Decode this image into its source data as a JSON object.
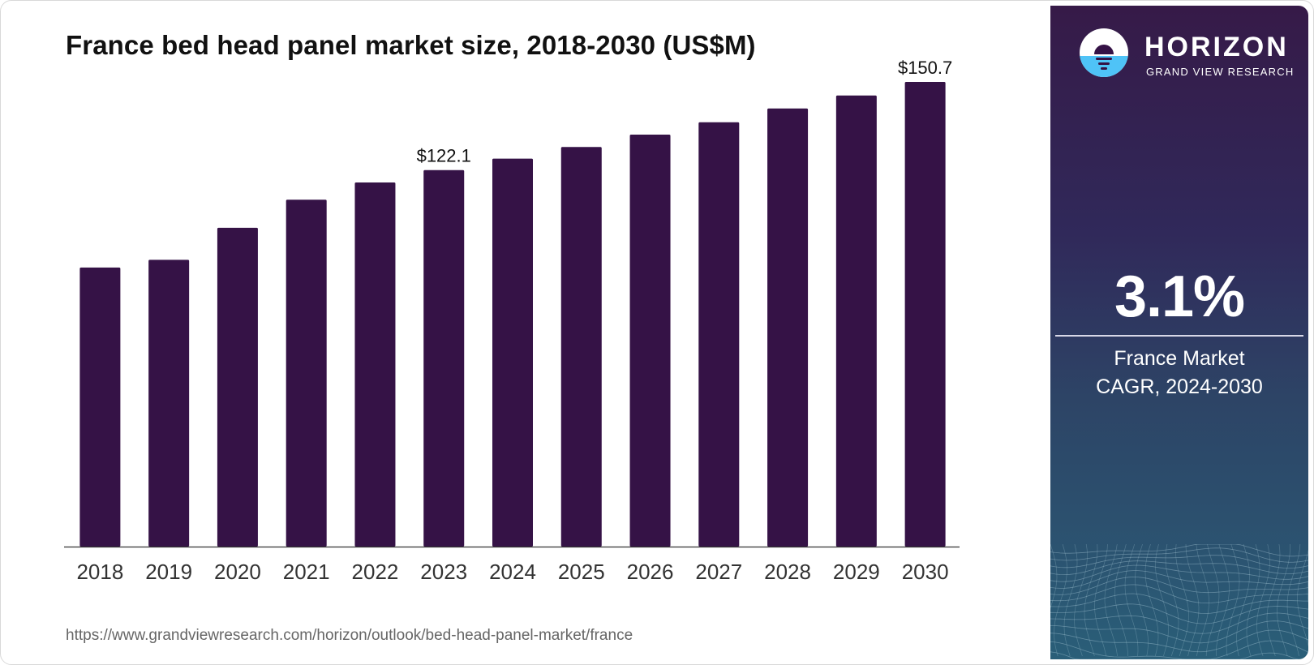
{
  "title": "France bed head panel market size, 2018-2030 (US$M)",
  "source_url": "https://www.grandviewresearch.com/horizon/outlook/bed-head-panel-market/france",
  "colors": {
    "bar": "#351246",
    "axis": "#333333",
    "panel_top": "#361a48",
    "panel_bottom": "#2a5e78",
    "logo_accent": "#4fc3f7"
  },
  "logo": {
    "name": "HORIZON",
    "subtitle": "GRAND VIEW RESEARCH",
    "icon": "horizon-sun-icon"
  },
  "side_panel": {
    "cagr_value": "3.1%",
    "cagr_label_line1": "France Market",
    "cagr_label_line2": "CAGR, 2024-2030"
  },
  "chart_data": {
    "type": "bar",
    "title": "France bed head panel market size, 2018-2030 (US$M)",
    "categories": [
      "2018",
      "2019",
      "2020",
      "2021",
      "2022",
      "2023",
      "2024",
      "2025",
      "2026",
      "2027",
      "2028",
      "2029",
      "2030"
    ],
    "values": [
      90.5,
      93.0,
      103.4,
      112.5,
      118.1,
      122.1,
      125.8,
      129.6,
      133.6,
      137.6,
      142.1,
      146.3,
      150.7
    ],
    "value_labels": [
      {
        "index": 5,
        "text": "$122.1"
      },
      {
        "index": 12,
        "text": "$150.7"
      }
    ],
    "xlabel": "",
    "ylabel": "",
    "ylim": [
      0,
      150.7
    ],
    "grid": false,
    "legend": "none"
  }
}
